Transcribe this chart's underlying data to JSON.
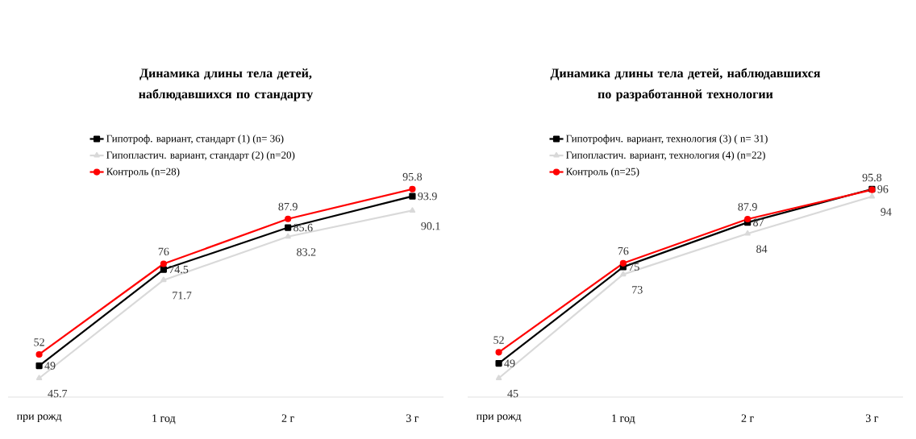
{
  "chart_data": [
    {
      "type": "line",
      "title": "Динамика длины тела детей, наблюдавшихся по стандарту",
      "categories": [
        "при рожд",
        "1 год",
        "2 г",
        "3 г"
      ],
      "legend": "top",
      "data_labels": true,
      "series": [
        {
          "name": "Гипотроф. вариант, стандарт (1) (n= 36)",
          "color": "#000000",
          "marker": "square",
          "values": [
            49,
            74.5,
            85.6,
            93.9
          ]
        },
        {
          "name": "Гипопластич. вариант, стандарт (2) (n=20)",
          "color": "#d9d9d9",
          "marker": "triangle",
          "values": [
            45.7,
            71.7,
            83.2,
            90.1
          ]
        },
        {
          "name": "Контроль (n=28)",
          "color": "#ff0000",
          "marker": "circle",
          "values": [
            52,
            76,
            87.9,
            95.8
          ]
        }
      ]
    },
    {
      "type": "line",
      "title": "Динамика длины тела детей, наблюдавшихся по разработанной технологии",
      "categories": [
        "при рожд",
        "1 год",
        "2 г",
        "3 г"
      ],
      "legend": "top",
      "data_labels": true,
      "series": [
        {
          "name": "Гипотрофич. вариант, технология (3) ( n= 31)",
          "color": "#000000",
          "marker": "square",
          "values": [
            49,
            75,
            87,
            96
          ]
        },
        {
          "name": "Гипопластич. вариант, технология (4) (n=22)",
          "color": "#d9d9d9",
          "marker": "triangle",
          "values": [
            45,
            73,
            84,
            94
          ]
        },
        {
          "name": "Контроль (n=25)",
          "color": "#ff0000",
          "marker": "circle",
          "values": [
            52,
            76,
            87.9,
            95.8
          ]
        }
      ]
    }
  ]
}
